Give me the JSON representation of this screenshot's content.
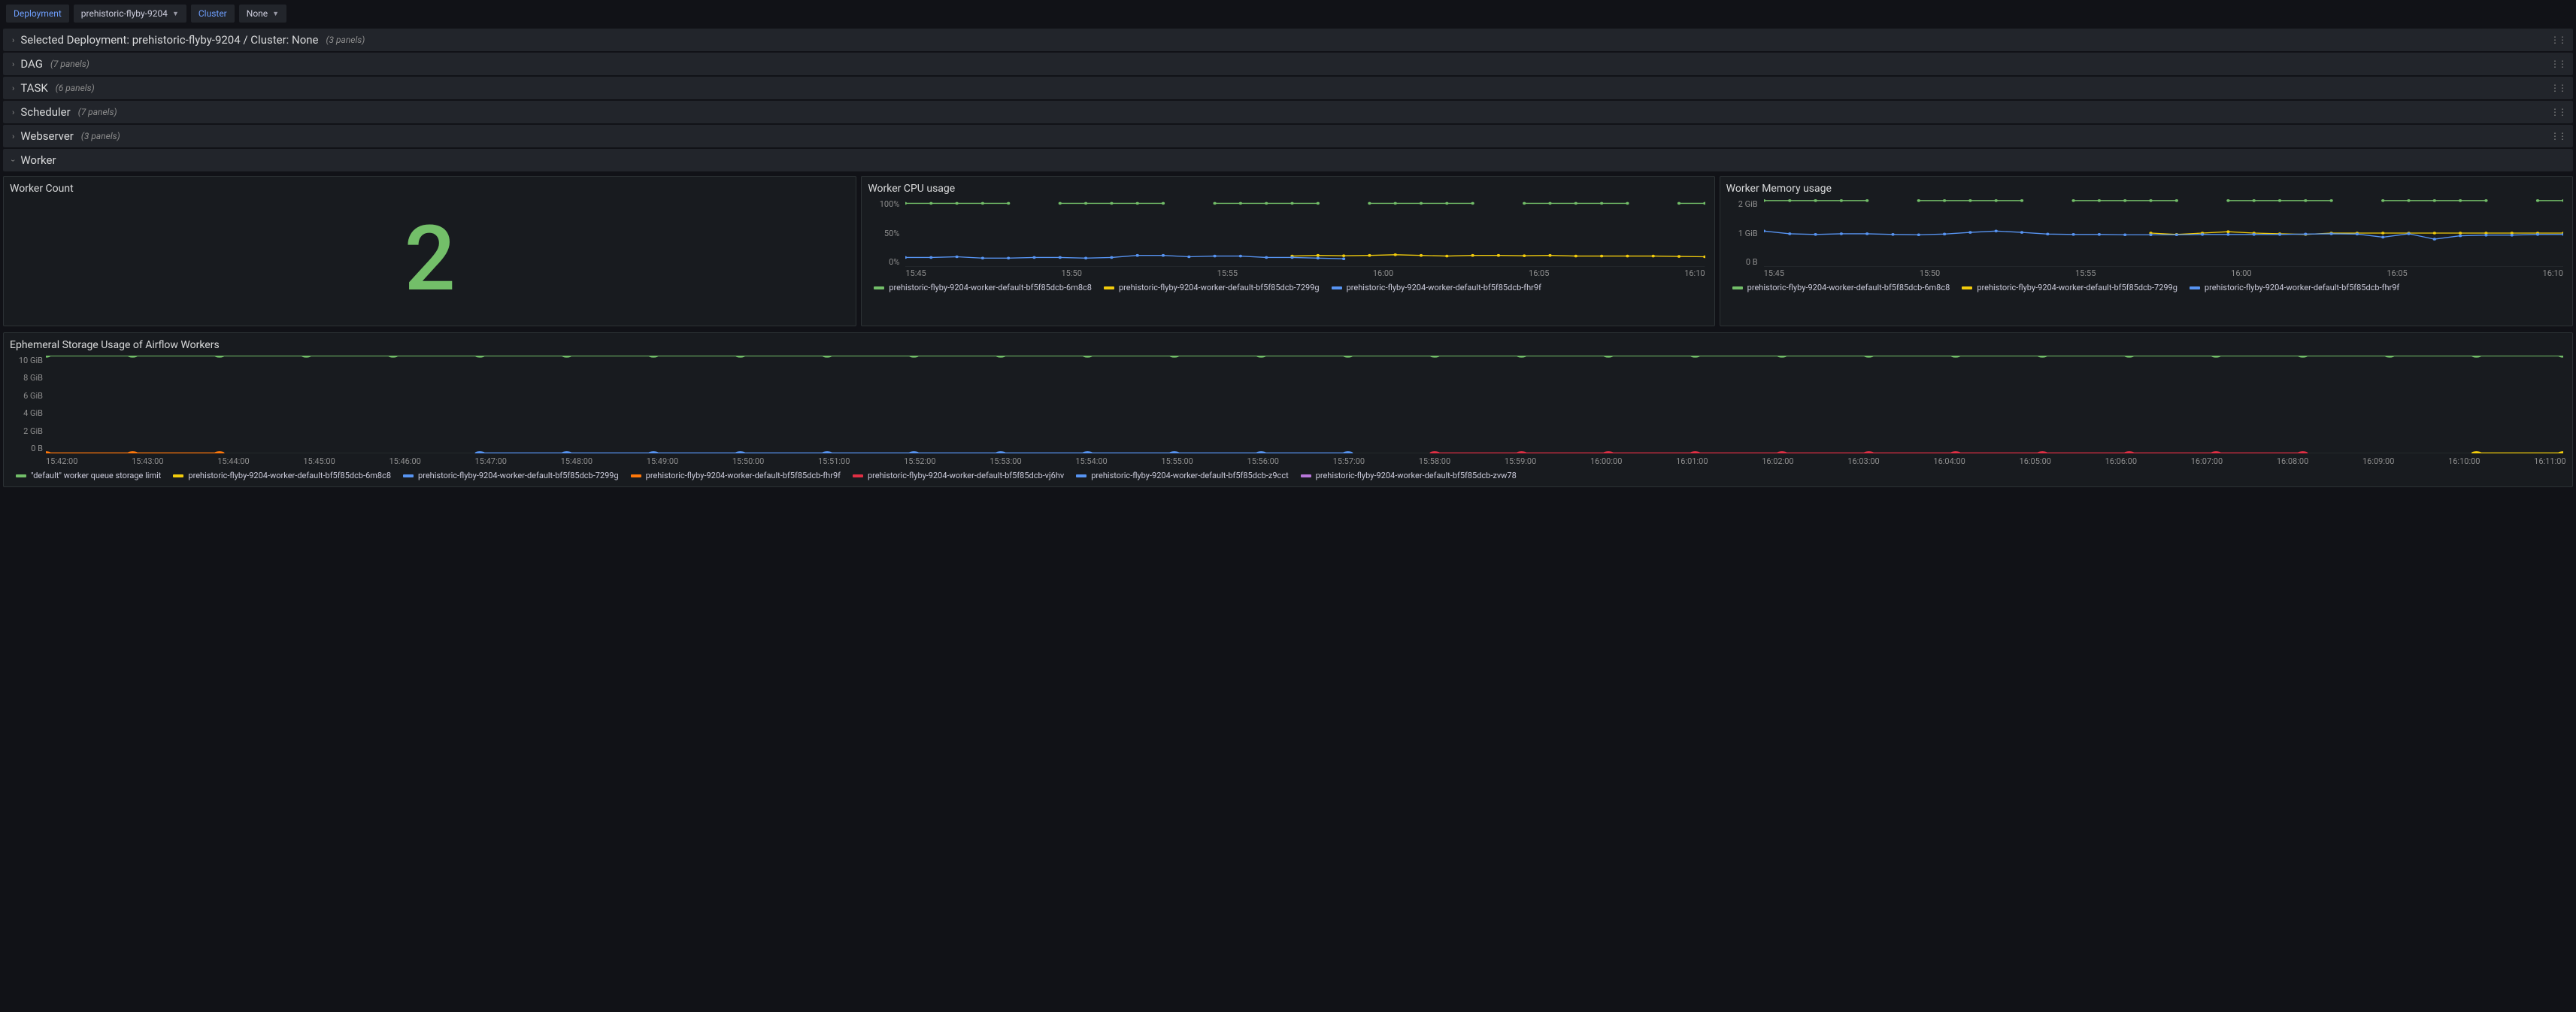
{
  "toolbar": {
    "deployment_label": "Deployment",
    "deployment_value": "prehistoric-flyby-9204",
    "cluster_label": "Cluster",
    "cluster_value": "None"
  },
  "rows": {
    "selected": {
      "title": "Selected Deployment: prehistoric-flyby-9204 / Cluster: None",
      "panels": "(3 panels)"
    },
    "dag": {
      "title": "DAG",
      "panels": "(7 panels)"
    },
    "task": {
      "title": "TASK",
      "panels": "(6 panels)"
    },
    "scheduler": {
      "title": "Scheduler",
      "panels": "(7 panels)"
    },
    "webserver": {
      "title": "Webserver",
      "panels": "(3 panels)"
    },
    "worker": {
      "title": "Worker"
    }
  },
  "worker_count": {
    "title": "Worker Count",
    "value": "2",
    "color": "#73BF69"
  },
  "cpu": {
    "title": "Worker CPU usage",
    "ylabels": [
      "100%",
      "50%",
      "0%"
    ],
    "xlabels": [
      "15:45",
      "15:50",
      "15:55",
      "16:00",
      "16:05",
      "16:10"
    ],
    "ylim": [
      0,
      100
    ],
    "background": "#181b1f",
    "grid_color": "#2c3235",
    "series": [
      {
        "name": "prehistoric-flyby-9204-worker-default-bf5f85dcb-6m8c8",
        "color": "#73BF69",
        "points": [
          94,
          94,
          94,
          94,
          94,
          null,
          94,
          94,
          94,
          94,
          94,
          null,
          94,
          94,
          94,
          94,
          94,
          null,
          94,
          94,
          94,
          94,
          94,
          null,
          94,
          94,
          94,
          94,
          94,
          null,
          94,
          94
        ]
      },
      {
        "name": "prehistoric-flyby-9204-worker-default-bf5f85dcb-7299g",
        "color": "#F2CC0C",
        "points": [
          null,
          null,
          null,
          null,
          null,
          null,
          null,
          null,
          null,
          null,
          null,
          null,
          null,
          null,
          null,
          16,
          17,
          16.5,
          17,
          18,
          17,
          16,
          17,
          17,
          16.5,
          17,
          16,
          16,
          16,
          16,
          15.5,
          15
        ]
      },
      {
        "name": "prehistoric-flyby-9204-worker-default-bf5f85dcb-fhr9f",
        "color": "#5794F2",
        "points": [
          14,
          14,
          15,
          13,
          13,
          14,
          14,
          13,
          14,
          17,
          17,
          15,
          16,
          16,
          14,
          14,
          13,
          12,
          null,
          null,
          null,
          null,
          null,
          null,
          null,
          null,
          null,
          null,
          null,
          null,
          null,
          null
        ]
      }
    ],
    "legend": [
      {
        "label": "prehistoric-flyby-9204-worker-default-bf5f85dcb-6m8c8",
        "color": "#73BF69"
      },
      {
        "label": "prehistoric-flyby-9204-worker-default-bf5f85dcb-7299g",
        "color": "#F2CC0C"
      },
      {
        "label": "prehistoric-flyby-9204-worker-default-bf5f85dcb-fhr9f",
        "color": "#5794F2"
      }
    ]
  },
  "memory": {
    "title": "Worker Memory usage",
    "ylabels": [
      "2 GiB",
      "1 GiB",
      "0 B"
    ],
    "xlabels": [
      "15:45",
      "15:50",
      "15:55",
      "16:00",
      "16:05",
      "16:10"
    ],
    "ylim": [
      0,
      2
    ],
    "series": [
      {
        "name": "prehistoric-flyby-9204-worker-default-bf5f85dcb-6m8c8",
        "color": "#73BF69",
        "points": [
          1.96,
          1.96,
          1.96,
          1.96,
          1.96,
          null,
          1.96,
          1.96,
          1.96,
          1.96,
          1.96,
          null,
          1.96,
          1.96,
          1.96,
          1.96,
          1.96,
          null,
          1.96,
          1.96,
          1.96,
          1.96,
          1.96,
          null,
          1.96,
          1.96,
          1.96,
          1.96,
          1.96,
          null,
          1.96,
          1.96
        ]
      },
      {
        "name": "prehistoric-flyby-9204-worker-default-bf5f85dcb-7299g",
        "color": "#F2CC0C",
        "points": [
          null,
          null,
          null,
          null,
          null,
          null,
          null,
          null,
          null,
          null,
          null,
          null,
          null,
          null,
          null,
          1.0,
          0.96,
          1.0,
          1.04,
          1.0,
          0.98,
          0.96,
          1.0,
          1.0,
          1.0,
          1.0,
          1.0,
          1.0,
          1.0,
          1.0,
          1.0,
          1.0
        ]
      },
      {
        "name": "prehistoric-flyby-9204-worker-default-bf5f85dcb-fhr9f",
        "color": "#5794F2",
        "points": [
          1.06,
          0.98,
          0.96,
          0.98,
          0.98,
          0.96,
          0.95,
          0.97,
          1.02,
          1.06,
          1.02,
          0.97,
          0.96,
          0.96,
          0.95,
          0.95,
          0.95,
          0.96,
          0.96,
          0.96,
          0.96,
          0.97,
          0.98,
          0.97,
          0.88,
          0.98,
          0.82,
          0.92,
          0.94,
          0.94,
          0.96,
          0.96
        ]
      }
    ],
    "legend": [
      {
        "label": "prehistoric-flyby-9204-worker-default-bf5f85dcb-6m8c8",
        "color": "#73BF69"
      },
      {
        "label": "prehistoric-flyby-9204-worker-default-bf5f85dcb-7299g",
        "color": "#F2CC0C"
      },
      {
        "label": "prehistoric-flyby-9204-worker-default-bf5f85dcb-fhr9f",
        "color": "#5794F2"
      }
    ]
  },
  "storage": {
    "title": "Ephemeral Storage Usage of Airflow Workers",
    "ylabels": [
      "10 GiB",
      "8 GiB",
      "6 GiB",
      "4 GiB",
      "2 GiB",
      "0 B"
    ],
    "ylim": [
      0,
      10
    ],
    "xlabels": [
      "15:42:00",
      "15:43:00",
      "15:44:00",
      "15:45:00",
      "15:46:00",
      "15:47:00",
      "15:48:00",
      "15:49:00",
      "15:50:00",
      "15:51:00",
      "15:52:00",
      "15:53:00",
      "15:54:00",
      "15:55:00",
      "15:56:00",
      "15:57:00",
      "15:58:00",
      "15:59:00",
      "16:00:00",
      "16:01:00",
      "16:02:00",
      "16:03:00",
      "16:04:00",
      "16:05:00",
      "16:06:00",
      "16:07:00",
      "16:08:00",
      "16:09:00",
      "16:10:00",
      "16:11:00"
    ],
    "series": [
      {
        "name": "\"default\" worker queue storage limit",
        "color": "#73BF69",
        "points": [
          10,
          10,
          10,
          10,
          10,
          10,
          10,
          10,
          10,
          10,
          10,
          10,
          10,
          10,
          10,
          10,
          10,
          10,
          10,
          10,
          10,
          10,
          10,
          10,
          10,
          10,
          10,
          10,
          10,
          10
        ]
      },
      {
        "name": "prehistoric-flyby-9204-worker-default-bf5f85dcb-6m8c8",
        "color": "#F2CC0C",
        "points": [
          null,
          null,
          null,
          null,
          null,
          null,
          null,
          null,
          null,
          null,
          null,
          null,
          null,
          null,
          null,
          null,
          null,
          null,
          null,
          null,
          null,
          null,
          null,
          null,
          null,
          null,
          null,
          null,
          0.02,
          0.02
        ]
      },
      {
        "name": "prehistoric-flyby-9204-worker-default-bf5f85dcb-7299g",
        "color": "#5794F2",
        "points": [
          null,
          null,
          null,
          null,
          null,
          0.02,
          0.02,
          0.02,
          0.02,
          0.02,
          0.02,
          0.02,
          0.02,
          0.02,
          0.02,
          0.02,
          null,
          null,
          null,
          null,
          null,
          null,
          null,
          null,
          null,
          null,
          null,
          null,
          null,
          null
        ]
      },
      {
        "name": "prehistoric-flyby-9204-worker-default-bf5f85dcb-fhr9f",
        "color": "#FF780A",
        "points": [
          0.02,
          0.02,
          0.02,
          null,
          null,
          null,
          null,
          null,
          null,
          null,
          null,
          null,
          null,
          null,
          null,
          null,
          null,
          null,
          null,
          null,
          null,
          null,
          null,
          null,
          null,
          null,
          null,
          null,
          null,
          null
        ]
      },
      {
        "name": "prehistoric-flyby-9204-worker-default-bf5f85dcb-vj6hv",
        "color": "#E02F44",
        "points": [
          null,
          null,
          null,
          null,
          null,
          null,
          null,
          null,
          null,
          null,
          null,
          null,
          null,
          null,
          null,
          null,
          0.02,
          0.02,
          0.02,
          0.02,
          0.02,
          0.02,
          0.02,
          0.02,
          0.02,
          0.02,
          0.02,
          null,
          null,
          null
        ]
      },
      {
        "name": "prehistoric-flyby-9204-worker-default-bf5f85dcb-z9cct",
        "color": "#5794F2",
        "points": [
          null,
          null,
          null,
          null,
          null,
          null,
          null,
          null,
          null,
          null,
          null,
          null,
          null,
          null,
          null,
          null,
          null,
          null,
          null,
          null,
          null,
          null,
          null,
          null,
          null,
          null,
          null,
          null,
          null,
          null
        ]
      },
      {
        "name": "prehistoric-flyby-9204-worker-default-bf5f85dcb-zvw78",
        "color": "#B877D9",
        "points": [
          null,
          null,
          null,
          null,
          null,
          null,
          null,
          null,
          null,
          null,
          null,
          null,
          null,
          null,
          null,
          null,
          null,
          null,
          null,
          null,
          null,
          null,
          null,
          null,
          null,
          null,
          null,
          null,
          null,
          null
        ]
      }
    ],
    "legend": [
      {
        "label": "\"default\" worker queue storage limit",
        "color": "#73BF69"
      },
      {
        "label": "prehistoric-flyby-9204-worker-default-bf5f85dcb-6m8c8",
        "color": "#F2CC0C"
      },
      {
        "label": "prehistoric-flyby-9204-worker-default-bf5f85dcb-7299g",
        "color": "#5794F2"
      },
      {
        "label": "prehistoric-flyby-9204-worker-default-bf5f85dcb-fhr9f",
        "color": "#FF780A"
      },
      {
        "label": "prehistoric-flyby-9204-worker-default-bf5f85dcb-vj6hv",
        "color": "#E02F44"
      },
      {
        "label": "prehistoric-flyby-9204-worker-default-bf5f85dcb-z9cct",
        "color": "#5794F2"
      },
      {
        "label": "prehistoric-flyby-9204-worker-default-bf5f85dcb-zvw78",
        "color": "#B877D9"
      }
    ]
  }
}
